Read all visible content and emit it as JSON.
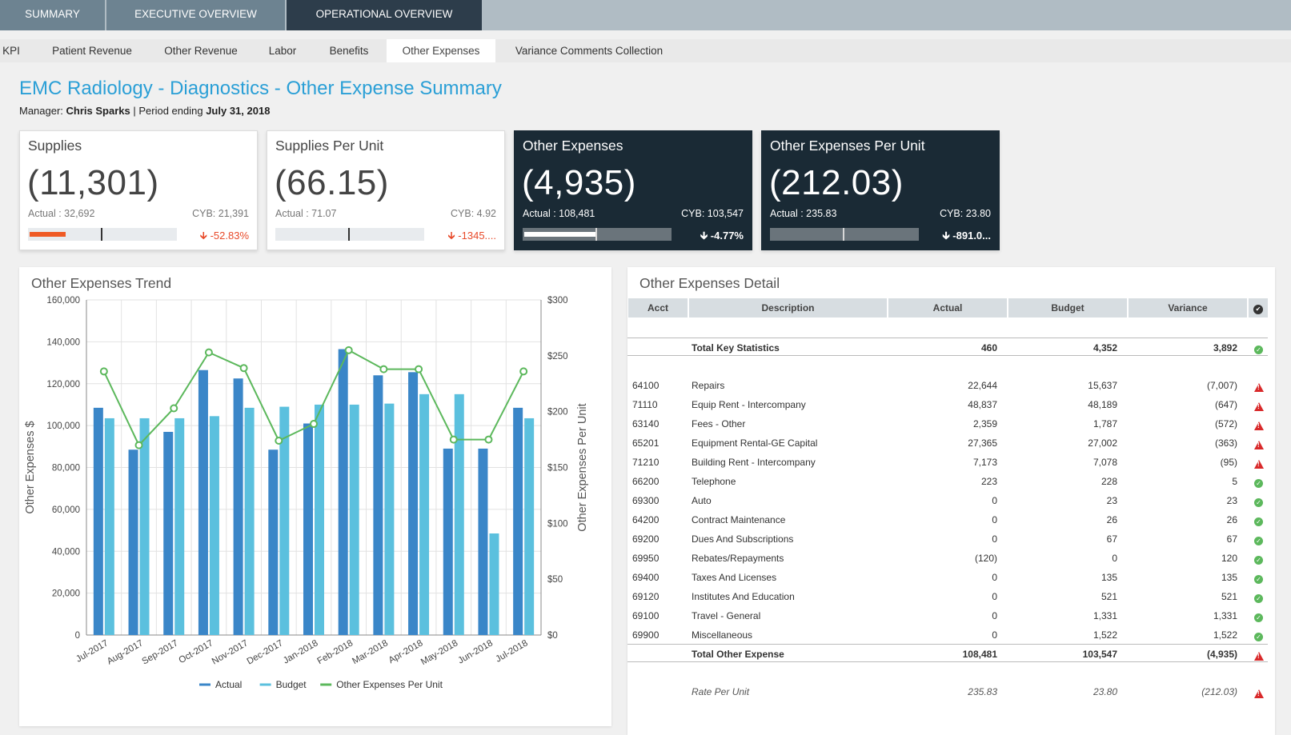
{
  "top_tabs": [
    "SUMMARY",
    "EXECUTIVE OVERVIEW",
    "OPERATIONAL OVERVIEW"
  ],
  "sub_tabs": [
    "KPI",
    "Patient Revenue",
    "Other Revenue",
    "Labor",
    "Benefits",
    "Other Expenses",
    "Variance Comments Collection"
  ],
  "active_sub_tab": "Other Expenses",
  "page": {
    "title": "EMC Radiology - Diagnostics - Other Expense Summary",
    "manager_label": "Manager: ",
    "manager_name": "Chris Sparks",
    "period_label": " | Period ending ",
    "period_date": "July 31, 2018"
  },
  "kpis": [
    {
      "title": "Supplies",
      "value": "(11,301)",
      "actual": "Actual : 32,692",
      "cyb": "CYB: 21,391",
      "variance": "-52.83%",
      "fill": 0.24,
      "marker": 0.49
    },
    {
      "title": "Supplies Per Unit",
      "value": "(66.15)",
      "actual": "Actual : 71.07",
      "cyb": "CYB: 4.92",
      "variance": "-1345....",
      "fill": 0,
      "marker": 0.49
    },
    {
      "title": "Other Expenses",
      "value": "(4,935)",
      "actual": "Actual : 108,481",
      "cyb": "CYB: 103,547",
      "variance": "-4.77%",
      "fill": 0.48,
      "marker": 0.49
    },
    {
      "title": "Other Expenses Per Unit",
      "value": "(212.03)",
      "actual": "Actual : 235.83",
      "cyb": "CYB: 23.80",
      "variance": "-891.0...",
      "fill": 0,
      "marker": 0.49
    }
  ],
  "trend": {
    "title": "Other Expenses Trend"
  },
  "chart_data": {
    "type": "bar",
    "categories": [
      "Jul-2017",
      "Aug-2017",
      "Sep-2017",
      "Oct-2017",
      "Nov-2017",
      "Dec-2017",
      "Jan-2018",
      "Feb-2018",
      "Mar-2018",
      "Apr-2018",
      "May-2018",
      "Jun-2018",
      "Jul-2018"
    ],
    "series": [
      {
        "name": "Actual",
        "values": [
          108500,
          88500,
          97000,
          126500,
          122500,
          88500,
          101000,
          136500,
          124000,
          125500,
          89000,
          89000,
          108500
        ],
        "color": "#3a86c8"
      },
      {
        "name": "Budget",
        "values": [
          103500,
          103500,
          103500,
          104500,
          108500,
          109000,
          110000,
          110000,
          110500,
          115000,
          115000,
          48500,
          103500
        ],
        "color": "#5bc0de"
      },
      {
        "name": "Other Expenses Per Unit",
        "type": "line",
        "axis": "right",
        "values": [
          236,
          170,
          203,
          253,
          239,
          174,
          189,
          255,
          238,
          238,
          175,
          175,
          236
        ],
        "color": "#5cb85c"
      }
    ],
    "ylabel": "Other Expenses $",
    "y2label": "Other Expenses Per Unit",
    "ylim": [
      0,
      160000
    ],
    "y2lim": [
      0,
      300
    ],
    "yticks": [
      "0",
      "20,000",
      "40,000",
      "60,000",
      "80,000",
      "100,000",
      "120,000",
      "140,000",
      "160,000"
    ],
    "y2ticks": [
      "$0",
      "$50",
      "$100",
      "$150",
      "$200",
      "$250",
      "$300"
    ],
    "legend": "bottom"
  },
  "detail": {
    "title": "Other Expenses Detail",
    "headers": [
      "Acct",
      "Description",
      "Actual",
      "Budget",
      "Variance",
      "✔"
    ],
    "total_key": {
      "desc": "Total Key Statistics",
      "actual": "460",
      "budget": "4,352",
      "variance": "3,892",
      "status": "ok"
    },
    "rows": [
      {
        "acct": "64100",
        "desc": "Repairs",
        "actual": "22,644",
        "budget": "15,637",
        "variance": "(7,007)",
        "status": "warn"
      },
      {
        "acct": "71110",
        "desc": "Equip Rent - Intercompany",
        "actual": "48,837",
        "budget": "48,189",
        "variance": "(647)",
        "status": "warn"
      },
      {
        "acct": "63140",
        "desc": "Fees - Other",
        "actual": "2,359",
        "budget": "1,787",
        "variance": "(572)",
        "status": "warn"
      },
      {
        "acct": "65201",
        "desc": "Equipment Rental-GE Capital",
        "actual": "27,365",
        "budget": "27,002",
        "variance": "(363)",
        "status": "warn"
      },
      {
        "acct": "71210",
        "desc": "Building Rent - Intercompany",
        "actual": "7,173",
        "budget": "7,078",
        "variance": "(95)",
        "status": "warn"
      },
      {
        "acct": "66200",
        "desc": "Telephone",
        "actual": "223",
        "budget": "228",
        "variance": "5",
        "status": "ok"
      },
      {
        "acct": "69300",
        "desc": "Auto",
        "actual": "0",
        "budget": "23",
        "variance": "23",
        "status": "ok"
      },
      {
        "acct": "64200",
        "desc": "Contract Maintenance",
        "actual": "0",
        "budget": "26",
        "variance": "26",
        "status": "ok"
      },
      {
        "acct": "69200",
        "desc": "Dues And Subscriptions",
        "actual": "0",
        "budget": "67",
        "variance": "67",
        "status": "ok"
      },
      {
        "acct": "69950",
        "desc": "Rebates/Repayments",
        "actual": "(120)",
        "budget": "0",
        "variance": "120",
        "status": "ok"
      },
      {
        "acct": "69400",
        "desc": "Taxes And Licenses",
        "actual": "0",
        "budget": "135",
        "variance": "135",
        "status": "ok"
      },
      {
        "acct": "69120",
        "desc": "Institutes And Education",
        "actual": "0",
        "budget": "521",
        "variance": "521",
        "status": "ok"
      },
      {
        "acct": "69100",
        "desc": "Travel - General",
        "actual": "0",
        "budget": "1,331",
        "variance": "1,331",
        "status": "ok"
      },
      {
        "acct": "69900",
        "desc": "Miscellaneous",
        "actual": "0",
        "budget": "1,522",
        "variance": "1,522",
        "status": "ok"
      }
    ],
    "total_other": {
      "desc": "Total Other Expense",
      "actual": "108,481",
      "budget": "103,547",
      "variance": "(4,935)",
      "status": "warn"
    },
    "rate": {
      "desc": "Rate Per Unit",
      "actual": "235.83",
      "budget": "23.80",
      "variance": "(212.03)",
      "status": "warn"
    }
  }
}
